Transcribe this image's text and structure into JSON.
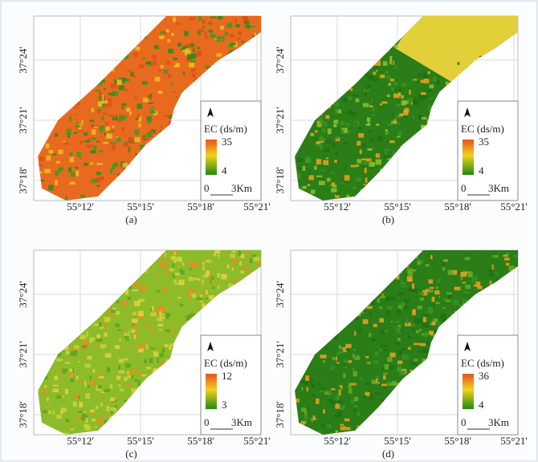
{
  "panels": [
    {
      "label": "(a)",
      "legend": {
        "title": "EC (ds/m)",
        "max": 35,
        "min": 4
      },
      "scale": {
        "start": 0,
        "end": "3Km"
      }
    },
    {
      "label": "(b)",
      "legend": {
        "title": "EC (ds/m)",
        "max": 35,
        "min": 4
      },
      "scale": {
        "start": 0,
        "end": "3Km"
      }
    },
    {
      "label": "(c)",
      "legend": {
        "title": "EC (ds/m)",
        "max": 12,
        "min": 3
      },
      "scale": {
        "start": 0,
        "end": "3Km"
      }
    },
    {
      "label": "(d)",
      "legend": {
        "title": "EC (ds/m)",
        "max": 36,
        "min": 4
      },
      "scale": {
        "start": 0,
        "end": "3Km"
      }
    }
  ],
  "lat_ticks": [
    "37°24'",
    "37°21'",
    "37°18'"
  ],
  "lon_ticks": [
    "55°12'",
    "55°15'",
    "55°18'",
    "55°21'"
  ]
}
